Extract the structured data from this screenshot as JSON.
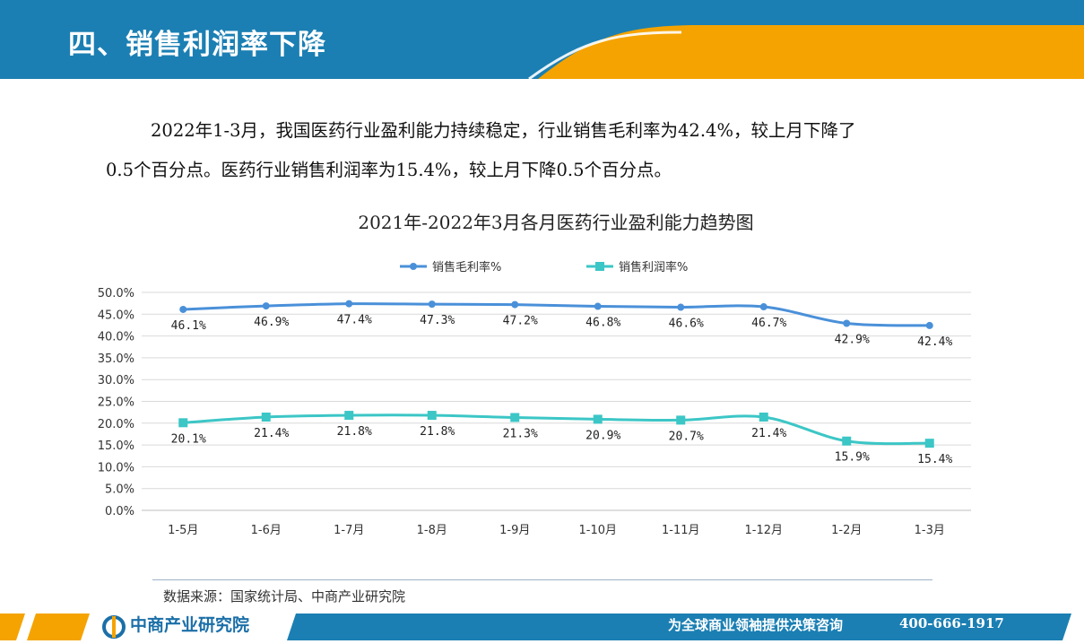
{
  "header": {
    "title": "四、销售利润率下降"
  },
  "intro": {
    "line1": "2022年1-3月，我国医药行业盈利能力持续稳定，行业销售毛利率为42.4%，较上月下降了",
    "line2": "0.5个百分点。医药行业销售利润率为15.4%，较上月下降0.5个百分点。"
  },
  "chart_data": {
    "type": "line",
    "title": "2021年-2022年3月各月医药行业盈利能力趋势图",
    "categories": [
      "1-5月",
      "1-6月",
      "1-7月",
      "1-8月",
      "1-9月",
      "1-10月",
      "1-11月",
      "1-12月",
      "1-2月",
      "1-3月"
    ],
    "series": [
      {
        "name": "销售毛利率%",
        "values": [
          46.1,
          46.9,
          47.4,
          47.3,
          47.2,
          46.8,
          46.6,
          46.7,
          42.9,
          42.4
        ],
        "color": "#4a90d9",
        "marker": "circle"
      },
      {
        "name": "销售利润率%",
        "values": [
          20.1,
          21.4,
          21.8,
          21.8,
          21.3,
          20.9,
          20.7,
          21.4,
          15.9,
          15.4
        ],
        "color": "#3cc6c6",
        "marker": "square"
      }
    ],
    "y_ticks": [
      "0.0%",
      "5.0%",
      "10.0%",
      "15.0%",
      "20.0%",
      "25.0%",
      "30.0%",
      "35.0%",
      "40.0%",
      "45.0%",
      "50.0%"
    ],
    "ylim": [
      0,
      50
    ],
    "legend": "top",
    "grid": true
  },
  "source": {
    "text": "数据来源：国家统计局、中商产业研究院"
  },
  "footer": {
    "logo": "中商产业研究院",
    "slogan": "为全球商业领袖提供决策咨询",
    "phone": "400-666-1917"
  },
  "colors": {
    "brand_blue": "#1b7fb3",
    "accent_orange": "#f5a300"
  }
}
